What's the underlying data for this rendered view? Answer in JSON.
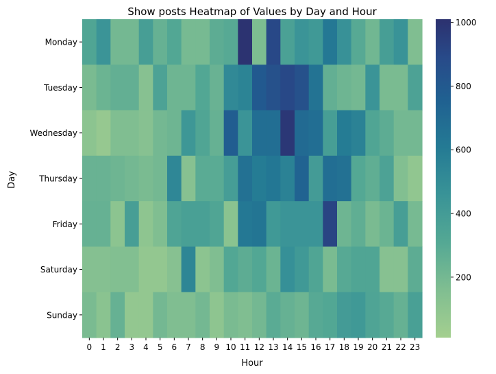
{
  "chart_data": {
    "type": "heatmap",
    "title": "Show posts Heatmap of Values by Day and Hour",
    "xlabel": "Hour",
    "ylabel": "Day",
    "x": [
      "0",
      "1",
      "2",
      "3",
      "4",
      "5",
      "6",
      "7",
      "8",
      "9",
      "10",
      "11",
      "12",
      "13",
      "14",
      "15",
      "16",
      "17",
      "18",
      "19",
      "20",
      "21",
      "22",
      "23"
    ],
    "y": [
      "Monday",
      "Tuesday",
      "Wednesday",
      "Thursday",
      "Friday",
      "Saturday",
      "Sunday"
    ],
    "values": [
      [
        330,
        450,
        200,
        200,
        380,
        250,
        320,
        190,
        190,
        280,
        300,
        1000,
        170,
        900,
        360,
        450,
        420,
        620,
        470,
        300,
        210,
        380,
        460,
        160
      ],
      [
        180,
        230,
        260,
        260,
        130,
        350,
        220,
        220,
        320,
        240,
        520,
        550,
        800,
        850,
        900,
        850,
        650,
        260,
        220,
        200,
        450,
        180,
        180,
        350
      ],
      [
        110,
        70,
        160,
        160,
        130,
        200,
        220,
        430,
        330,
        250,
        780,
        450,
        680,
        680,
        980,
        700,
        680,
        380,
        600,
        560,
        330,
        280,
        200,
        200
      ],
      [
        240,
        240,
        220,
        200,
        180,
        200,
        530,
        130,
        290,
        290,
        390,
        660,
        600,
        630,
        560,
        740,
        400,
        680,
        660,
        310,
        270,
        350,
        150,
        90
      ],
      [
        250,
        250,
        110,
        380,
        100,
        160,
        340,
        370,
        370,
        330,
        120,
        620,
        640,
        420,
        450,
        450,
        450,
        920,
        220,
        270,
        180,
        230,
        380,
        190
      ],
      [
        140,
        140,
        150,
        150,
        80,
        80,
        130,
        540,
        110,
        160,
        320,
        280,
        320,
        230,
        480,
        420,
        330,
        180,
        300,
        330,
        330,
        130,
        130,
        280
      ],
      [
        180,
        120,
        250,
        80,
        80,
        200,
        160,
        160,
        200,
        100,
        180,
        160,
        200,
        290,
        250,
        220,
        300,
        320,
        400,
        420,
        340,
        300,
        250,
        370
      ]
    ],
    "colorbar": {
      "min": 10,
      "max": 1010,
      "ticks": [
        200,
        400,
        600,
        800,
        1000
      ]
    },
    "colormap": "crest",
    "grid": false,
    "legend": "colorbar-right"
  }
}
